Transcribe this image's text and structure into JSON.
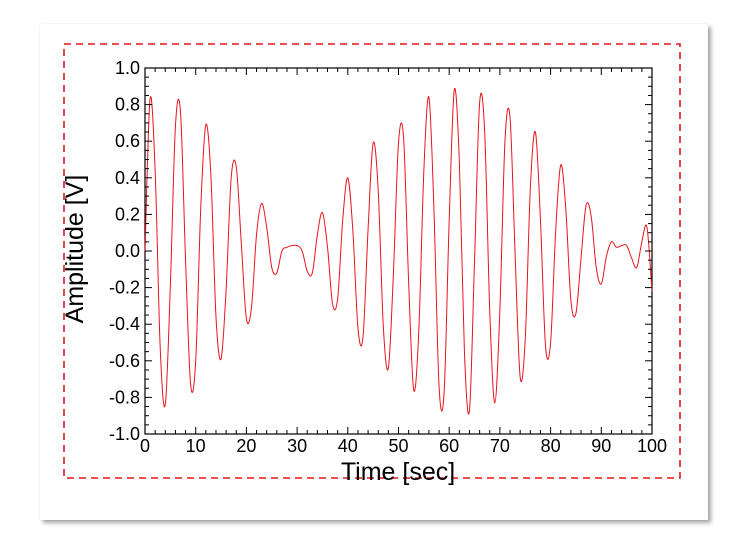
{
  "chart_data": {
    "type": "line",
    "xlabel": "Time [sec]",
    "ylabel": "Amplitude [V]",
    "xlim": [
      0,
      100
    ],
    "ylim": [
      -1.0,
      1.0
    ],
    "x_ticks": [
      0,
      10,
      20,
      30,
      40,
      50,
      60,
      70,
      80,
      90,
      100
    ],
    "x_tick_labels": [
      "0",
      "10",
      "20",
      "30",
      "40",
      "50",
      "60",
      "70",
      "80",
      "90",
      "100"
    ],
    "y_ticks": [
      -1.0,
      -0.8,
      -0.6,
      -0.4,
      -0.2,
      0.0,
      0.2,
      0.4,
      0.6,
      0.8,
      1.0
    ],
    "y_tick_labels": [
      "-1.0",
      "-0.8",
      "-0.6",
      "-0.4",
      "-0.2",
      "0.0",
      "0.2",
      "0.4",
      "0.6",
      "0.8",
      "1.0"
    ],
    "grid": false,
    "series": [
      {
        "color": "#e8141b",
        "x": [
          0,
          1,
          2,
          3,
          4,
          5,
          6,
          7,
          8,
          9,
          10,
          11,
          12,
          13,
          14,
          15,
          16,
          17,
          18,
          19,
          20,
          21,
          22,
          23,
          24,
          25,
          26,
          27,
          28,
          29,
          30,
          31,
          32,
          33,
          34,
          35,
          36,
          37,
          38,
          39,
          40,
          41,
          42,
          43,
          44,
          45,
          46,
          47,
          48,
          49,
          50,
          51,
          52,
          53,
          54,
          55,
          56,
          57,
          58,
          59,
          60,
          61,
          62,
          63,
          64,
          65,
          66,
          67,
          68,
          69,
          70,
          71,
          72,
          73,
          74,
          75,
          76,
          77,
          78,
          79,
          80,
          81,
          82,
          83,
          84,
          85,
          86,
          87,
          88,
          89,
          90,
          91,
          92,
          93,
          94,
          95,
          96,
          97,
          98,
          99,
          100
        ],
        "y": [
          0.0,
          0.83,
          0.44,
          -0.53,
          -0.84,
          -0.19,
          0.68,
          0.76,
          -0.05,
          -0.73,
          -0.6,
          0.24,
          0.69,
          0.41,
          -0.36,
          -0.59,
          -0.21,
          0.4,
          0.46,
          0.04,
          -0.37,
          -0.31,
          0.09,
          0.26,
          0.13,
          -0.09,
          -0.12,
          0.0,
          0.02,
          0.03,
          0.03,
          0.0,
          -0.11,
          -0.12,
          0.09,
          0.21,
          0.02,
          -0.29,
          -0.26,
          0.17,
          0.4,
          0.11,
          -0.42,
          -0.47,
          0.12,
          0.59,
          0.33,
          -0.41,
          -0.64,
          -0.12,
          0.59,
          0.62,
          -0.17,
          -0.76,
          -0.44,
          0.44,
          0.84,
          0.22,
          -0.74,
          -0.77,
          0.17,
          0.88,
          0.49,
          -0.55,
          -0.87,
          -0.05,
          0.81,
          0.65,
          -0.33,
          -0.83,
          -0.32,
          0.6,
          0.73,
          -0.02,
          -0.69,
          -0.48,
          0.34,
          0.65,
          0.17,
          -0.52,
          -0.5,
          0.11,
          0.47,
          0.23,
          -0.27,
          -0.34,
          -0.04,
          0.25,
          0.19,
          -0.09,
          -0.18,
          -0.03,
          0.05,
          0.02,
          0.03,
          0.03,
          -0.04,
          -0.09,
          0.05,
          0.13,
          -0.22
        ]
      }
    ]
  },
  "figure": {
    "frame_color": "#e8141b"
  }
}
